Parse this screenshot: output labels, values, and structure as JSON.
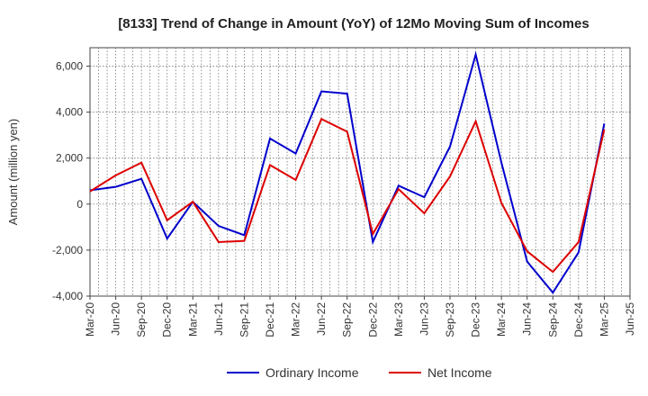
{
  "chart_data": {
    "type": "line",
    "title": "[8133]  Trend of Change in Amount (YoY) of 12Mo Moving Sum of Incomes",
    "ylabel": "Amount (million yen)",
    "xlabel": "",
    "ylim": [
      -4000,
      6800
    ],
    "yticks": [
      -4000,
      -2000,
      0,
      2000,
      4000,
      6000
    ],
    "ytick_labels": [
      "-4,000",
      "-2,000",
      "0",
      "2,000",
      "4,000",
      "6,000"
    ],
    "x_tick_labels": [
      "Mar-20",
      "Jun-20",
      "Sep-20",
      "Dec-20",
      "Mar-21",
      "Jun-21",
      "Sep-21",
      "Dec-21",
      "Mar-22",
      "Jun-22",
      "Sep-22",
      "Dec-22",
      "Mar-23",
      "Jun-23",
      "Sep-23",
      "Dec-23",
      "Mar-24",
      "Jun-24",
      "Sep-24",
      "Dec-24",
      "Mar-25",
      "Jun-25"
    ],
    "grid": true,
    "legend_position": "bottom",
    "series": [
      {
        "name": "Ordinary Income",
        "color": "#0000cc",
        "values": [
          600,
          750,
          1100,
          -1500,
          100,
          -950,
          -1350,
          2850,
          2200,
          4900,
          4800,
          -1650,
          800,
          300,
          2500,
          6500,
          1800,
          -2500,
          -3850,
          -2100,
          3500
        ]
      },
      {
        "name": "Net Income",
        "color": "#dd0000",
        "values": [
          550,
          1250,
          1800,
          -700,
          100,
          -1650,
          -1600,
          1700,
          1050,
          3700,
          3150,
          -1300,
          650,
          -400,
          1200,
          3600,
          50,
          -2050,
          -2950,
          -1650,
          3250
        ]
      }
    ]
  }
}
